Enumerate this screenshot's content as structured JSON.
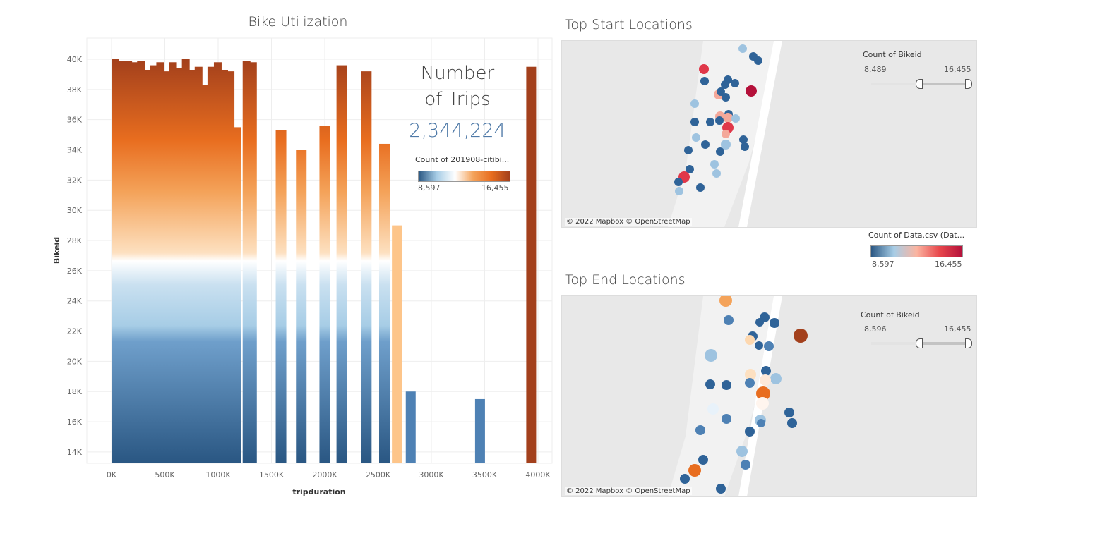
{
  "left": {
    "title": "Bike Utilization",
    "kpi_title_line1": "Number",
    "kpi_title_line2": "of Trips",
    "kpi_value": "2,344,224",
    "legend": {
      "title": "Count of 201908-citibi...",
      "min": "8,597",
      "max": "16,455",
      "colors": [
        "#2a5783",
        "#a7cde6",
        "#ffffff",
        "#f4a35a",
        "#e86d1f",
        "#a3401c"
      ]
    }
  },
  "chart_data": {
    "type": "bar",
    "title": "Bike Utilization",
    "xlabel": "tripduration",
    "ylabel": "Bikeid",
    "xlim": [
      -150,
      4200
    ],
    "ylim": [
      13300,
      41000
    ],
    "x_ticks": [
      "0K",
      "500K",
      "1000K",
      "1500K",
      "2000K",
      "2500K",
      "3000K",
      "3500K",
      "4000K"
    ],
    "y_ticks": [
      "14K",
      "16K",
      "18K",
      "20K",
      "22K",
      "24K",
      "26K",
      "28K",
      "30K",
      "32K",
      "34K",
      "36K",
      "38K",
      "40K"
    ],
    "grid": true,
    "color_field": "Count of 201908-citibi...",
    "bars": [
      {
        "x": 0,
        "top": 40000
      },
      {
        "x": 60,
        "top": 39900
      },
      {
        "x": 120,
        "top": 39900
      },
      {
        "x": 180,
        "top": 39800
      },
      {
        "x": 240,
        "top": 39900
      },
      {
        "x": 300,
        "top": 39300
      },
      {
        "x": 360,
        "top": 39600
      },
      {
        "x": 420,
        "top": 39800
      },
      {
        "x": 480,
        "top": 39200
      },
      {
        "x": 540,
        "top": 39800
      },
      {
        "x": 600,
        "top": 39400
      },
      {
        "x": 660,
        "top": 40000
      },
      {
        "x": 720,
        "top": 39300
      },
      {
        "x": 780,
        "top": 39500
      },
      {
        "x": 840,
        "top": 38300
      },
      {
        "x": 900,
        "top": 39500
      },
      {
        "x": 960,
        "top": 39800
      },
      {
        "x": 1020,
        "top": 39300
      },
      {
        "x": 1080,
        "top": 39200
      },
      {
        "x": 1140,
        "top": 35500
      },
      {
        "x": 1230,
        "top": 39900
      },
      {
        "x": 1290,
        "top": 39800
      },
      {
        "x": 1540,
        "top": 35300
      },
      {
        "x": 1730,
        "top": 34000
      },
      {
        "x": 1950,
        "top": 35600
      },
      {
        "x": 2110,
        "top": 39600
      },
      {
        "x": 2340,
        "top": 39200
      },
      {
        "x": 2510,
        "top": 34400
      },
      {
        "x": 2630,
        "top": 29000,
        "color": "#fdc58a"
      },
      {
        "x": 2760,
        "top": 18000,
        "color": "#4e81b4"
      },
      {
        "x": 3410,
        "top": 17500,
        "color": "#4e81b4"
      },
      {
        "x": 3890,
        "top": 39500,
        "color": "#a3401c"
      }
    ]
  },
  "start_map": {
    "title": "Top Start Locations",
    "filter": {
      "title": "Count of Bikeid",
      "min": "8,489",
      "max": "16,455"
    },
    "attribution": "© 2022 Mapbox  © OpenStreetMap"
  },
  "map_legend": {
    "title": "Count of Data.csv (Dat...",
    "min": "8,597",
    "max": "16,455",
    "colors": [
      "#2a5783",
      "#a7cde6",
      "#fbb4a0",
      "#e8474c",
      "#b4103a"
    ]
  },
  "end_map": {
    "title": "Top End Locations",
    "filter": {
      "title": "Count of Bikeid",
      "min": "8,596",
      "max": "16,455"
    },
    "attribution": "© 2022 Mapbox  © OpenStreetMap"
  }
}
